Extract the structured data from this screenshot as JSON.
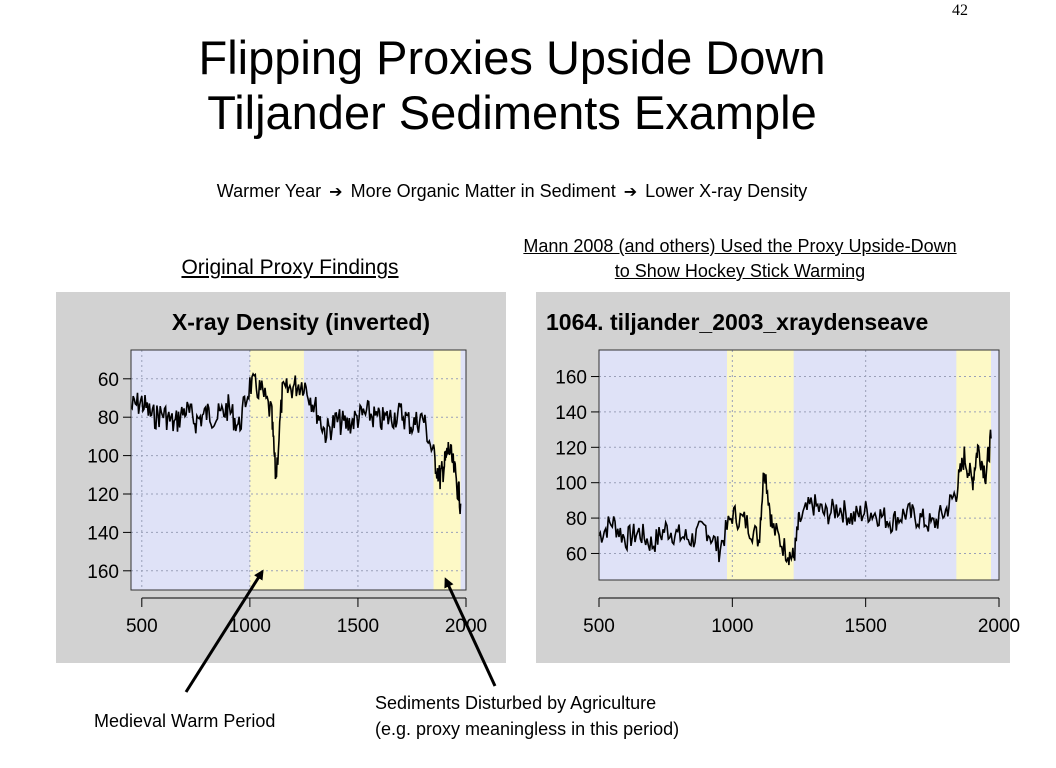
{
  "slide_number": "42",
  "title": {
    "line1": "Flipping Proxies Upside Down",
    "line2": "Tiljander Sediments Example"
  },
  "subtitle": {
    "part1": "Warmer Year",
    "part2": "More Organic Matter in Sediment",
    "part3": "Lower X-ray Density",
    "arrow": "➔"
  },
  "left_caption": "Original Proxy Findings",
  "right_caption": {
    "line1": "Mann 2008 (and others) Used the Proxy Upside-Down",
    "line2": "to Show Hockey Stick Warming"
  },
  "annotations": {
    "medieval": "Medieval Warm Period",
    "agri_line1": "Sediments Disturbed by Agriculture",
    "agri_line2": "(e.g. proxy meaningless in this period)"
  },
  "colors": {
    "panel_bg": "#d2d2d2",
    "plot_bg": "#dfe2f7",
    "highlight": "#fdf9c6",
    "grid": "#9aa0b8",
    "series": "#000000"
  },
  "chart_data": [
    {
      "type": "line",
      "title": "X-ray Density (inverted)",
      "xlim": [
        450,
        2000
      ],
      "ylim": [
        170,
        45
      ],
      "inverted_y": true,
      "xticks": [
        500,
        1000,
        1500,
        2000
      ],
      "yticks": [
        60,
        80,
        100,
        120,
        140,
        160
      ],
      "highlight_ranges": [
        [
          1000,
          1250
        ],
        [
          1850,
          1975
        ]
      ],
      "series": [
        {
          "x": [
            450,
            500,
            550,
            600,
            650,
            700,
            750,
            800,
            850,
            900,
            950,
            1000,
            1050,
            1100,
            1120,
            1150,
            1200,
            1250,
            1300,
            1350,
            1400,
            1450,
            1500,
            1550,
            1600,
            1650,
            1700,
            1750,
            1800,
            1850,
            1880,
            1900,
            1920,
            1950,
            1975
          ],
          "y": [
            75,
            72,
            80,
            78,
            84,
            76,
            82,
            78,
            80,
            75,
            85,
            63,
            66,
            78,
            112,
            68,
            64,
            62,
            74,
            88,
            82,
            84,
            80,
            78,
            82,
            80,
            78,
            84,
            80,
            100,
            112,
            105,
            96,
            110,
            125
          ]
        }
      ]
    },
    {
      "type": "line",
      "title": "1064. tiljander_2003_xraydenseave",
      "xlim": [
        500,
        2000
      ],
      "ylim": [
        45,
        175
      ],
      "xticks": [
        500,
        1000,
        1500,
        2000
      ],
      "yticks": [
        60,
        80,
        100,
        120,
        140,
        160
      ],
      "highlight_ranges": [
        [
          980,
          1230
        ],
        [
          1840,
          1970
        ]
      ],
      "series": [
        {
          "x": [
            500,
            550,
            600,
            650,
            700,
            750,
            800,
            850,
            900,
            950,
            1000,
            1050,
            1100,
            1120,
            1150,
            1200,
            1230,
            1250,
            1300,
            1350,
            1400,
            1450,
            1500,
            1550,
            1600,
            1650,
            1700,
            1750,
            1800,
            1840,
            1870,
            1900,
            1920,
            1950,
            1970
          ],
          "y": [
            70,
            78,
            68,
            72,
            65,
            74,
            70,
            68,
            75,
            62,
            82,
            78,
            68,
            110,
            75,
            62,
            57,
            78,
            88,
            82,
            86,
            80,
            84,
            82,
            78,
            83,
            80,
            76,
            84,
            95,
            115,
            100,
            120,
            105,
            125
          ]
        }
      ]
    }
  ]
}
